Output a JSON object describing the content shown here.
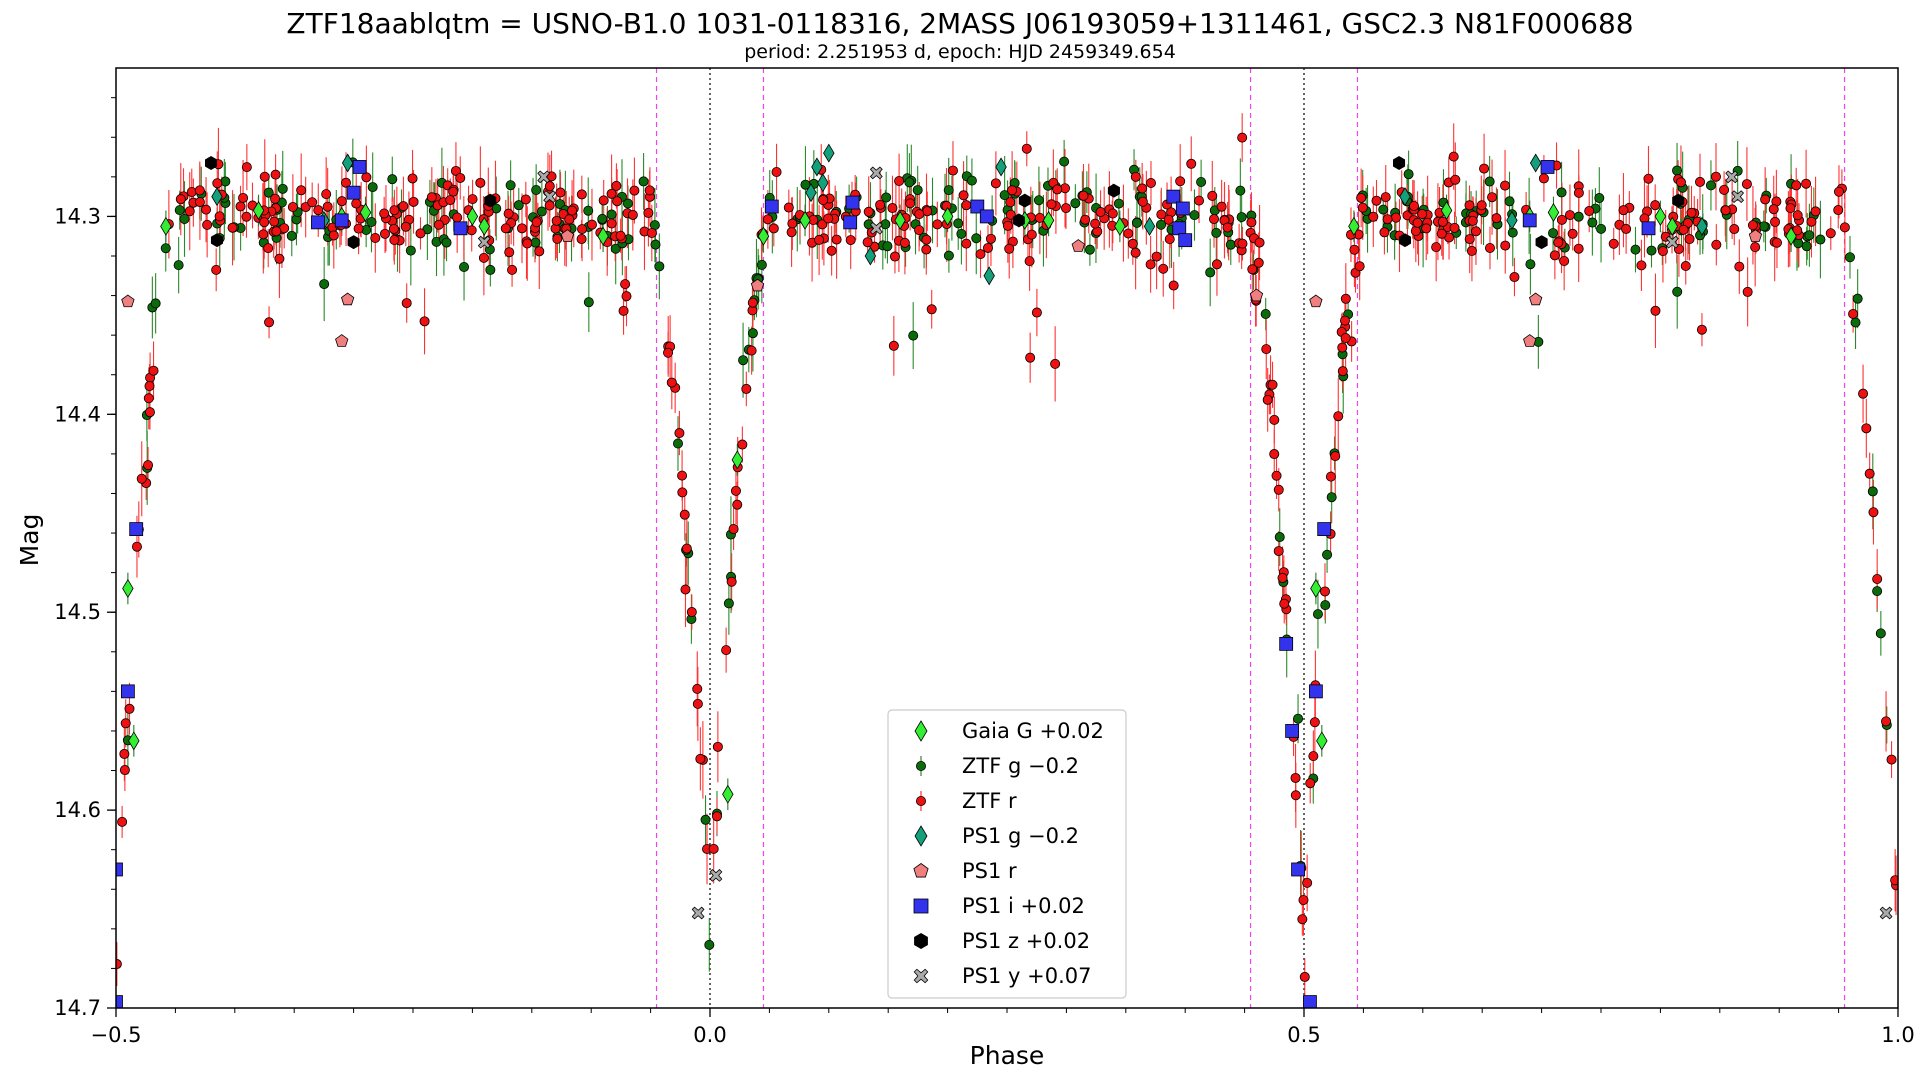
{
  "chart_data": {
    "type": "scatter",
    "title": "ZTF18aablqtm = USNO-B1.0 1031-0118316, 2MASS J06193059+1311461, GSC2.3 N81F000688",
    "subtitle": "period: 2.251953 d, epoch: HJD 2459349.654",
    "xlabel": "Phase",
    "ylabel": "Mag",
    "xlim": [
      -0.5,
      1.0
    ],
    "ylim": [
      14.7,
      14.225
    ],
    "y_inverted": true,
    "grid": false,
    "legend_position": "bottom-center",
    "x_ticks": [
      {
        "value": -0.5,
        "label": "−0.5"
      },
      {
        "value": 0.0,
        "label": "0.0"
      },
      {
        "value": 0.5,
        "label": "0.5"
      },
      {
        "value": 1.0,
        "label": "1.0"
      }
    ],
    "y_ticks": [
      {
        "value": 14.3,
        "label": "14.3"
      },
      {
        "value": 14.4,
        "label": "14.4"
      },
      {
        "value": 14.5,
        "label": "14.5"
      },
      {
        "value": 14.6,
        "label": "14.6"
      },
      {
        "value": 14.7,
        "label": "14.7"
      }
    ],
    "x_minor_step": 0.05,
    "y_minor_step": 0.02,
    "reference_lines": [
      {
        "x": 0.0,
        "color": "#000000",
        "style": "dotted"
      },
      {
        "x": 0.5,
        "color": "#000000",
        "style": "dotted"
      },
      {
        "x": -0.045,
        "color": "#ee44ee",
        "style": "dashed"
      },
      {
        "x": 0.045,
        "color": "#ee44ee",
        "style": "dashed"
      },
      {
        "x": 0.455,
        "color": "#ee44ee",
        "style": "dashed"
      },
      {
        "x": 0.545,
        "color": "#ee44ee",
        "style": "dashed"
      },
      {
        "x": 0.955,
        "color": "#ee44ee",
        "style": "dashed"
      }
    ],
    "light_curve": {
      "baseline": 14.3,
      "primary_depth": 0.36,
      "secondary_depth": 0.36,
      "eclipse_half_width": 0.05,
      "eclipse_centers": [
        -0.5,
        0.0,
        0.5,
        1.0
      ]
    },
    "series": [
      {
        "name": "Gaia G +0.02",
        "marker": "diamond",
        "color": "#33ee33",
        "errorbar_color": "#2a7a2a",
        "points": [
          [
            -0.485,
            14.565
          ],
          [
            -0.49,
            14.488
          ],
          [
            -0.458,
            14.305
          ],
          [
            -0.38,
            14.297
          ],
          [
            -0.31,
            14.3
          ],
          [
            -0.29,
            14.298
          ],
          [
            -0.2,
            14.3
          ],
          [
            -0.19,
            14.305
          ],
          [
            -0.09,
            14.31
          ],
          [
            0.015,
            14.592
          ],
          [
            0.023,
            14.423
          ],
          [
            0.045,
            14.31
          ],
          [
            0.08,
            14.302
          ],
          [
            0.16,
            14.302
          ],
          [
            0.2,
            14.3
          ],
          [
            0.265,
            14.302
          ],
          [
            0.285,
            14.302
          ],
          [
            0.345,
            14.305
          ],
          [
            0.515,
            14.565
          ],
          [
            0.51,
            14.488
          ],
          [
            0.542,
            14.305
          ],
          [
            0.62,
            14.297
          ],
          [
            0.69,
            14.3
          ],
          [
            0.71,
            14.298
          ],
          [
            0.8,
            14.3
          ],
          [
            0.81,
            14.305
          ],
          [
            0.91,
            14.31
          ]
        ]
      },
      {
        "name": "ZTF g −0.2",
        "marker": "circle",
        "color": "#0b6b0b",
        "errorbar_color": "#2a8a2a",
        "generated": true,
        "count": 260
      },
      {
        "name": "ZTF r",
        "marker": "circle",
        "color": "#ee1111",
        "errorbar_color": "#ff3333",
        "generated": true,
        "count": 540
      },
      {
        "name": "PS1 g −0.2",
        "marker": "diamond",
        "color": "#13a07a",
        "errorbar_color": "#13a07a",
        "points": [
          [
            -0.305,
            14.273
          ],
          [
            -0.325,
            14.302
          ],
          [
            0.085,
            14.288
          ],
          [
            0.09,
            14.275
          ],
          [
            0.1,
            14.268
          ],
          [
            0.095,
            14.283
          ],
          [
            0.135,
            14.32
          ],
          [
            0.245,
            14.275
          ],
          [
            0.235,
            14.33
          ],
          [
            0.37,
            14.305
          ],
          [
            -0.415,
            14.29
          ],
          [
            0.585,
            14.29
          ],
          [
            0.675,
            14.302
          ],
          [
            0.695,
            14.273
          ],
          [
            0.835,
            14.305
          ]
        ]
      },
      {
        "name": "PS1 r",
        "marker": "pentagon",
        "color": "#f08080",
        "errorbar_color": "#f08080",
        "points": [
          [
            -0.31,
            14.363
          ],
          [
            -0.305,
            14.342
          ],
          [
            -0.49,
            14.343
          ],
          [
            -0.12,
            14.31
          ],
          [
            0.04,
            14.335
          ],
          [
            0.31,
            14.315
          ],
          [
            0.69,
            14.363
          ],
          [
            0.695,
            14.342
          ],
          [
            0.51,
            14.343
          ],
          [
            0.88,
            14.31
          ],
          [
            0.46,
            14.34
          ]
        ]
      },
      {
        "name": "PS1 i +0.02",
        "marker": "square",
        "color": "#3333ee",
        "errorbar_color": "#3333ee",
        "points": [
          [
            -0.5,
            14.63
          ],
          [
            -0.5,
            14.697
          ],
          [
            -0.49,
            14.54
          ],
          [
            -0.483,
            14.458
          ],
          [
            -0.295,
            14.275
          ],
          [
            -0.3,
            14.288
          ],
          [
            -0.31,
            14.302
          ],
          [
            -0.33,
            14.303
          ],
          [
            -0.21,
            14.306
          ],
          [
            0.052,
            14.295
          ],
          [
            0.12,
            14.293
          ],
          [
            0.118,
            14.303
          ],
          [
            0.225,
            14.295
          ],
          [
            0.233,
            14.3
          ],
          [
            0.39,
            14.29
          ],
          [
            0.398,
            14.296
          ],
          [
            0.395,
            14.306
          ],
          [
            0.4,
            14.312
          ],
          [
            0.485,
            14.516
          ],
          [
            0.49,
            14.56
          ],
          [
            0.495,
            14.63
          ],
          [
            0.505,
            14.697
          ],
          [
            0.51,
            14.54
          ],
          [
            0.517,
            14.458
          ],
          [
            0.705,
            14.275
          ],
          [
            0.69,
            14.302
          ],
          [
            0.79,
            14.306
          ]
        ]
      },
      {
        "name": "PS1 z +0.02",
        "marker": "hexagon",
        "color": "#000000",
        "errorbar_color": "#000000",
        "points": [
          [
            -0.42,
            14.273
          ],
          [
            -0.415,
            14.312
          ],
          [
            -0.3,
            14.313
          ],
          [
            -0.185,
            14.292
          ],
          [
            0.265,
            14.292
          ],
          [
            0.26,
            14.302
          ],
          [
            0.34,
            14.287
          ],
          [
            0.58,
            14.273
          ],
          [
            0.585,
            14.312
          ],
          [
            0.7,
            14.313
          ],
          [
            0.815,
            14.292
          ]
        ]
      },
      {
        "name": "PS1 y +0.07",
        "marker": "cross",
        "color": "#aaaaaa",
        "errorbar_color": "#888888",
        "points": [
          [
            -0.19,
            14.313
          ],
          [
            -0.14,
            14.28
          ],
          [
            -0.135,
            14.29
          ],
          [
            -0.01,
            14.652
          ],
          [
            0.005,
            14.633
          ],
          [
            0.14,
            14.306
          ],
          [
            0.14,
            14.278
          ],
          [
            0.81,
            14.313
          ],
          [
            0.86,
            14.28
          ],
          [
            0.865,
            14.29
          ],
          [
            0.99,
            14.652
          ]
        ]
      }
    ]
  }
}
